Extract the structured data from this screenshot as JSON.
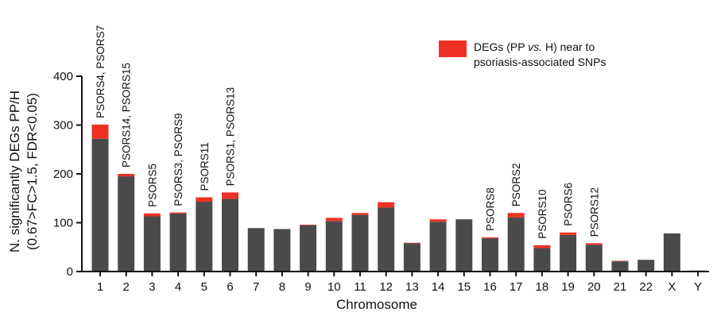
{
  "chart_data": {
    "type": "bar",
    "stacked": true,
    "categories": [
      "1",
      "2",
      "3",
      "4",
      "5",
      "6",
      "7",
      "8",
      "9",
      "10",
      "11",
      "12",
      "13",
      "14",
      "15",
      "16",
      "17",
      "18",
      "19",
      "20",
      "21",
      "22",
      "X",
      "Y"
    ],
    "series": [
      {
        "color": "#4a4a4a",
        "values": [
          272,
          195,
          113,
          119,
          143,
          149,
          89,
          87,
          95,
          103,
          116,
          131,
          58,
          102,
          107,
          68,
          111,
          48,
          75,
          55,
          21,
          24,
          78,
          2
        ]
      },
      {
        "name": "DEGs (PP vs. H) near to psoriasis-associated SNPs",
        "color": "#ee3124",
        "values": [
          29,
          5,
          6,
          2,
          9,
          13,
          0,
          0,
          1,
          7,
          4,
          11,
          1,
          5,
          0,
          2,
          9,
          6,
          5,
          3,
          1,
          0,
          0,
          0
        ]
      }
    ],
    "annotations": [
      {
        "category": "1",
        "text": "PSORS4, PSORS7"
      },
      {
        "category": "2",
        "text": "PSORS14, PSORS15"
      },
      {
        "category": "3",
        "text": "PSORS5"
      },
      {
        "category": "4",
        "text": "PSORS3, PSORS9"
      },
      {
        "category": "5",
        "text": "PSORS11"
      },
      {
        "category": "6",
        "text": "PSORS1, PSORS13"
      },
      {
        "category": "16",
        "text": "PSORS8"
      },
      {
        "category": "17",
        "text": "PSORS2"
      },
      {
        "category": "18",
        "text": "PSORS10"
      },
      {
        "category": "19",
        "text": "PSORS6"
      },
      {
        "category": "20",
        "text": "PSORS12"
      }
    ],
    "xlabel": "Chromosome",
    "ylabel_line1": "N. significantly DEGs PP/H",
    "ylabel_line2": "(0.67>FC>1.5, FDR<0.05)",
    "yticks": [
      0,
      100,
      200,
      300,
      400
    ],
    "ylim": [
      0,
      400
    ],
    "legend": {
      "position": "top-right",
      "line1_pre": "DEGs (PP ",
      "line1_italic": "vs.",
      "line1_post": " H) near to",
      "line2": "psoriasis-associated SNPs"
    }
  }
}
